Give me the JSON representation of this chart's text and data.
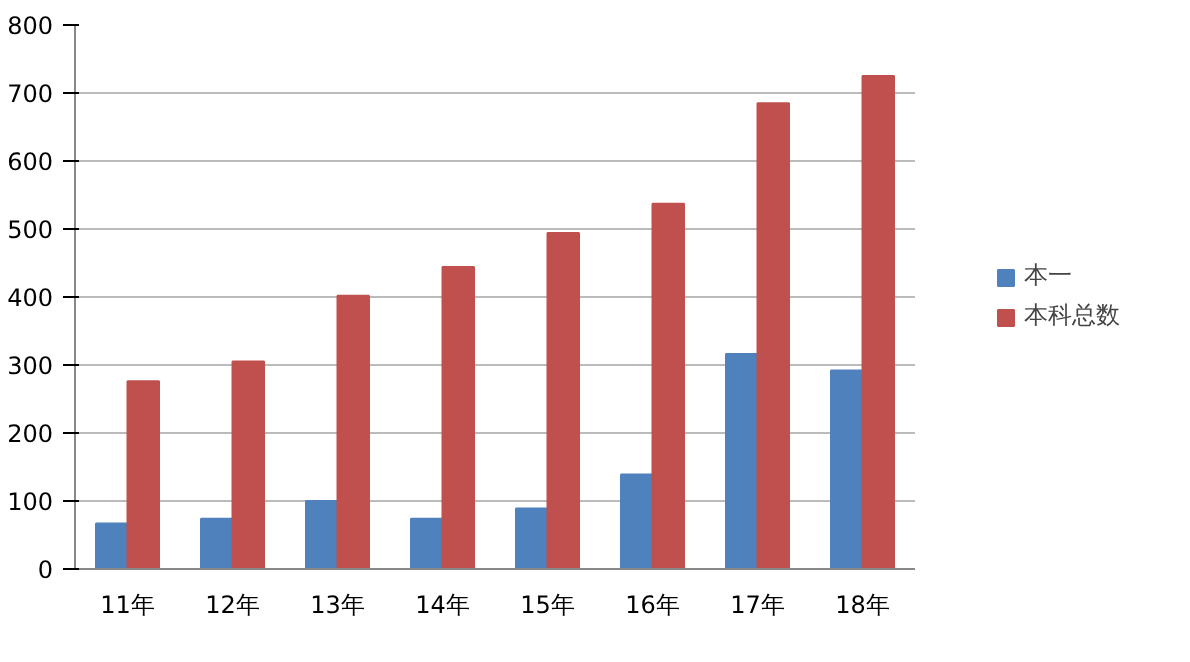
{
  "chart_data": {
    "type": "bar",
    "categories": [
      "11年",
      "12年",
      "13年",
      "14年",
      "15年",
      "16年",
      "17年",
      "18年"
    ],
    "series": [
      {
        "name": "本一",
        "color": "#4f81bd",
        "values": [
          67,
          74,
          100,
          74,
          89,
          139,
          316,
          292
        ]
      },
      {
        "name": "本科总数",
        "color": "#c0504d",
        "values": [
          276,
          305,
          402,
          444,
          494,
          537,
          685,
          725
        ]
      }
    ],
    "ylim": [
      0,
      800
    ],
    "yticks": [
      0,
      100,
      200,
      300,
      400,
      500,
      600,
      700,
      800
    ],
    "grid": "y",
    "legend": "right"
  }
}
